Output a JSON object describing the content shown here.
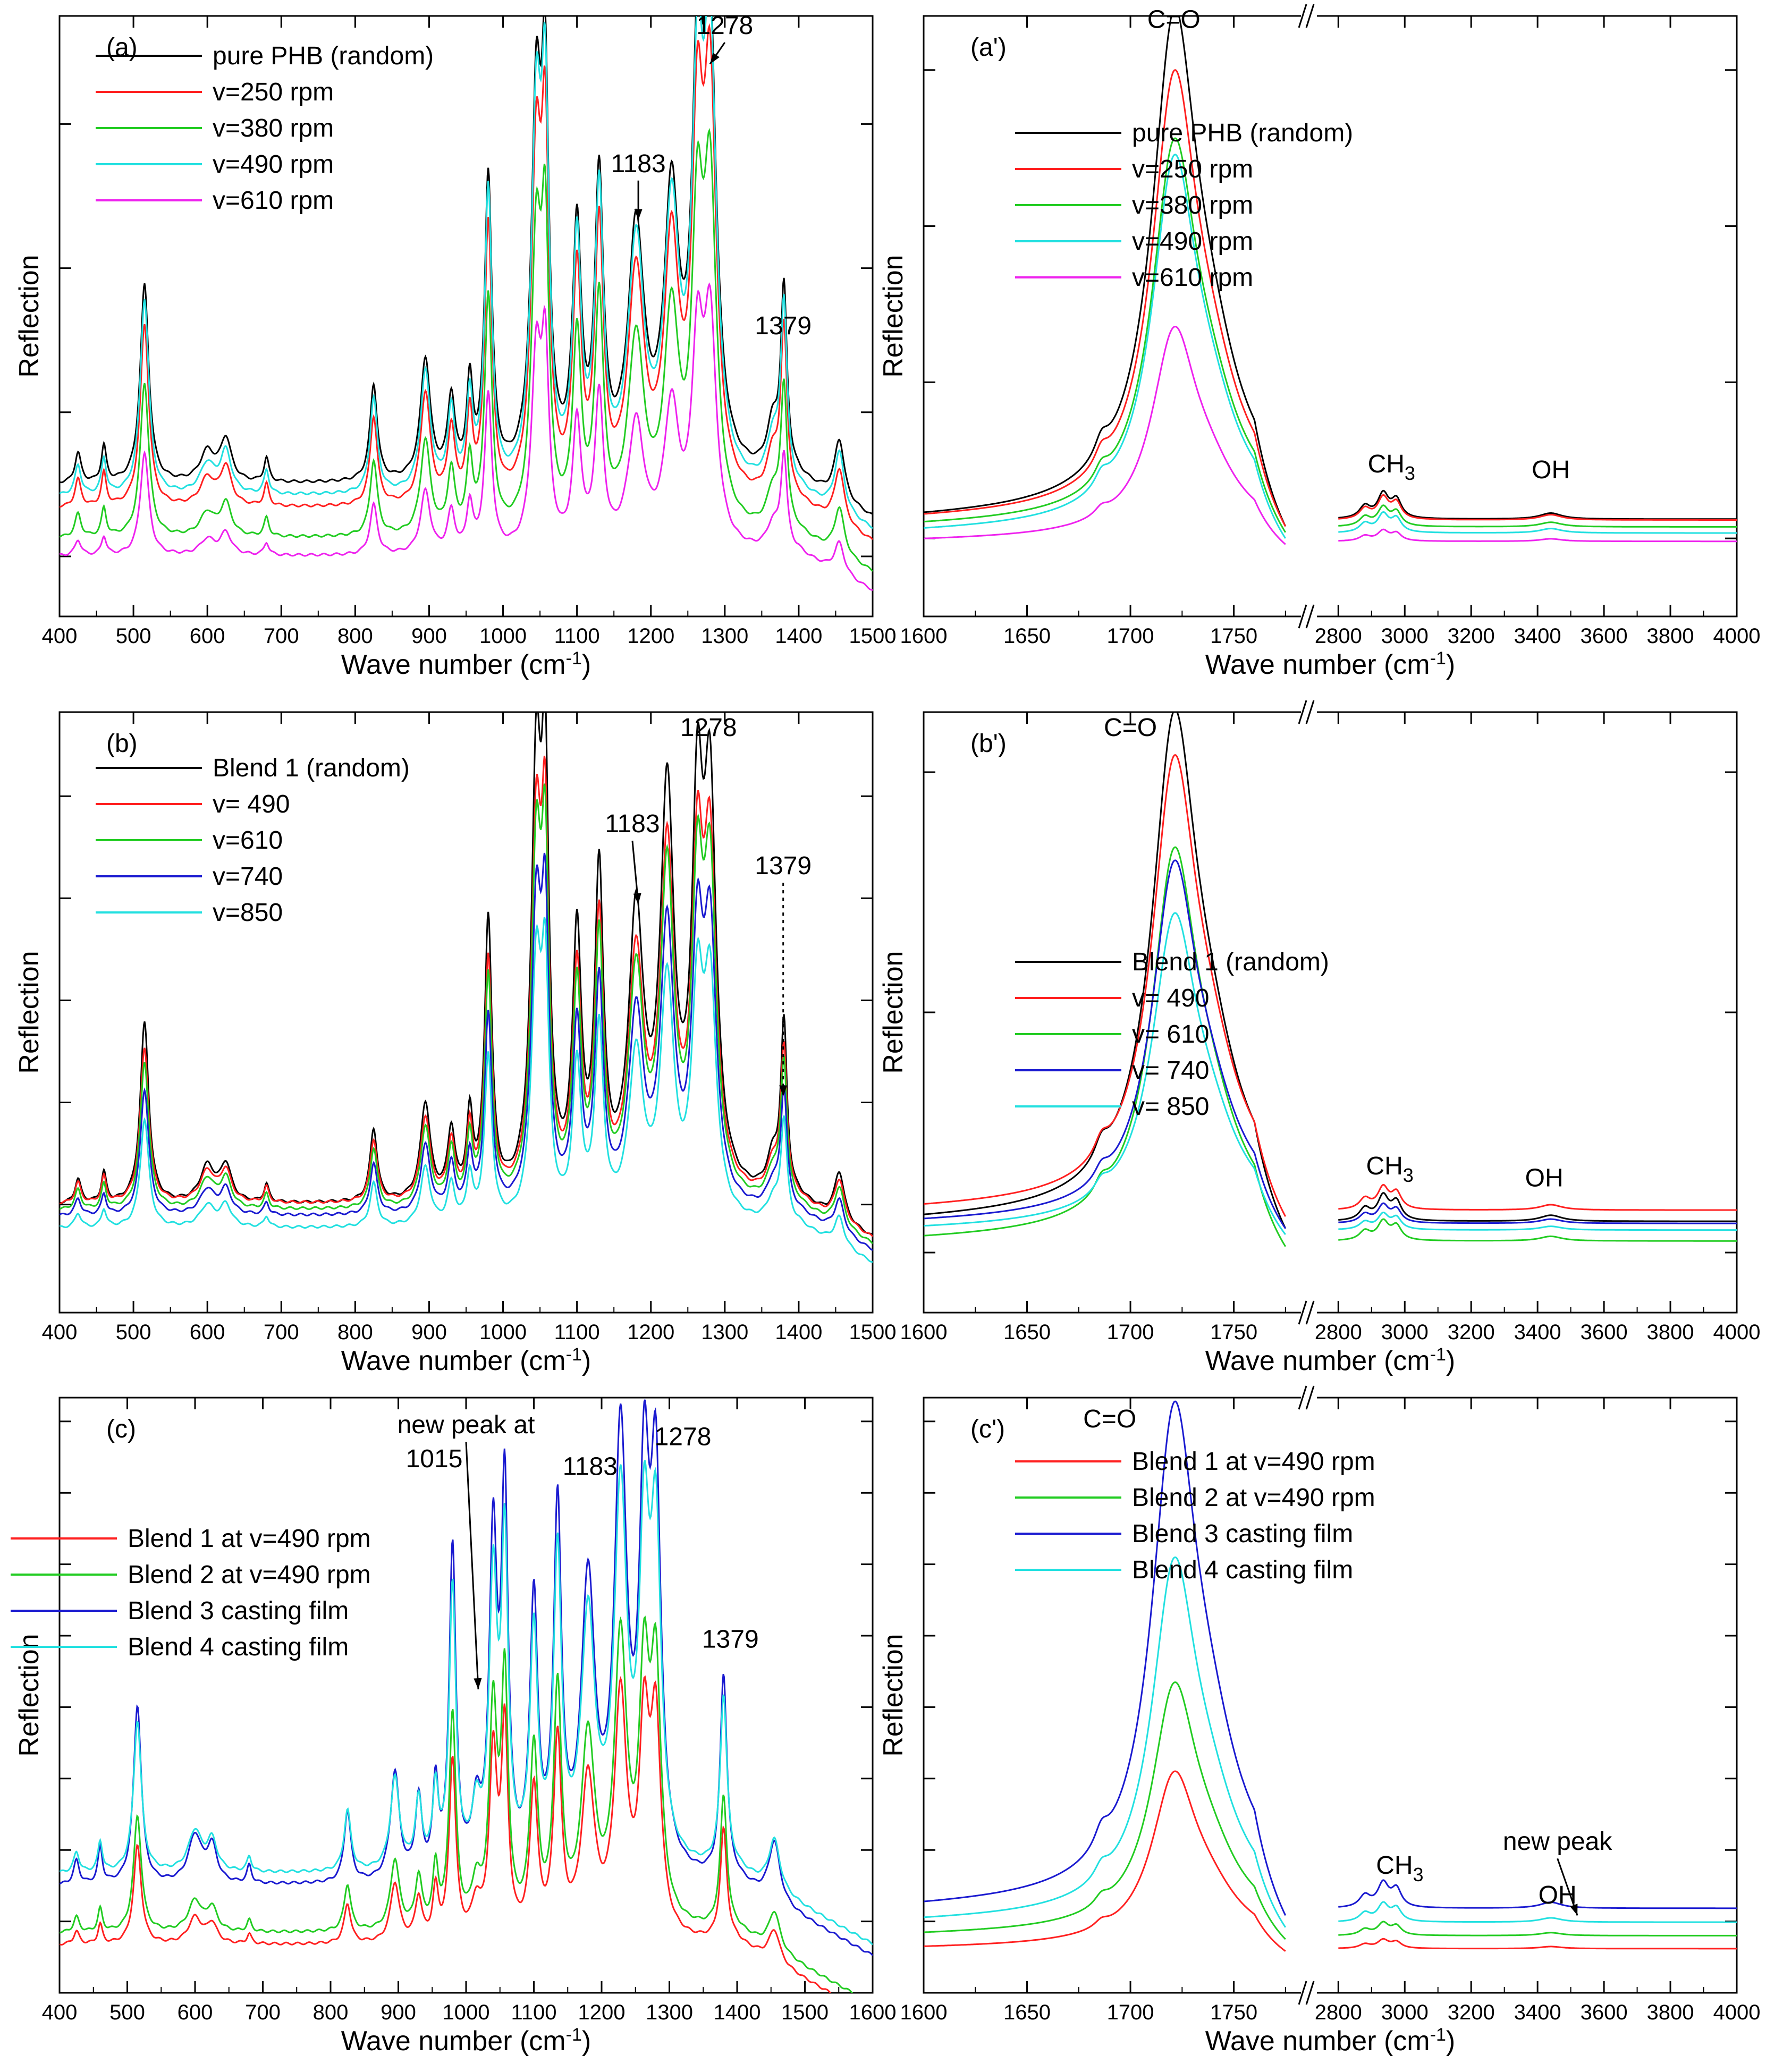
{
  "chart_data": [
    {
      "id": "a",
      "type": "line",
      "panel_label": "(a)",
      "xlabel": "Wave number (cm",
      "xlabel_sup": "-1",
      "xlabel_end": ")",
      "ylabel": "Reflection",
      "xlim": [
        400,
        1500
      ],
      "ylim": [
        0,
        100
      ],
      "xticks": [
        400,
        500,
        600,
        700,
        800,
        900,
        1000,
        1100,
        1200,
        1300,
        1400,
        1500
      ],
      "yticks": [
        10,
        34,
        58,
        82
      ],
      "legend": [
        "pure PHB (random)",
        "v=250 rpm",
        "v=380 rpm",
        "v=490 rpm",
        "v=610 rpm"
      ],
      "series": [
        {
          "name": "pure PHB (random)",
          "color": "#000000",
          "base": 22,
          "scale": 1.0
        },
        {
          "name": "v=250 rpm",
          "color": "#ff2020",
          "base": 18,
          "scale": 0.92
        },
        {
          "name": "v=380 rpm",
          "color": "#22cc22",
          "base": 13,
          "scale": 0.78
        },
        {
          "name": "v=490 rpm",
          "color": "#22e0e0",
          "base": 20,
          "scale": 0.99
        },
        {
          "name": "v=610 rpm",
          "color": "#ee22ee",
          "base": 10,
          "scale": 0.52
        }
      ],
      "peaks": [
        [
          425,
          5,
          5
        ],
        [
          460,
          6,
          4
        ],
        [
          515,
          33,
          7
        ],
        [
          600,
          5,
          12
        ],
        [
          625,
          7,
          9
        ],
        [
          680,
          4,
          4
        ],
        [
          825,
          16,
          6
        ],
        [
          895,
          20,
          8
        ],
        [
          930,
          13,
          6
        ],
        [
          955,
          15,
          5
        ],
        [
          980,
          50,
          6
        ],
        [
          1045,
          60,
          8
        ],
        [
          1057,
          58,
          6
        ],
        [
          1100,
          40,
          7
        ],
        [
          1130,
          48,
          7
        ],
        [
          1180,
          40,
          13
        ],
        [
          1228,
          44,
          12
        ],
        [
          1263,
          60,
          9
        ],
        [
          1280,
          70,
          10
        ],
        [
          1365,
          8,
          10
        ],
        [
          1380,
          30,
          5
        ],
        [
          1455,
          10,
          8
        ]
      ],
      "annotations": [
        {
          "text": "1278",
          "x": 1300,
          "y": 97,
          "arrow_to": [
            1280,
            92
          ]
        },
        {
          "text": "1183",
          "x": 1183,
          "y": 74,
          "arrow_to": [
            1183,
            66
          ]
        },
        {
          "text": "1379",
          "x": 1379,
          "y": 47
        }
      ]
    },
    {
      "id": "a2",
      "type": "line",
      "panel_label": "(a')",
      "xlabel": "Wave number (cm",
      "xlabel_sup": "-1",
      "xlabel_end": ")",
      "ylabel": "Reflection",
      "segments": [
        {
          "xlim": [
            1600,
            1775
          ],
          "ticks": [
            1600,
            1650,
            1700,
            1750
          ]
        },
        {
          "xlim": [
            2800,
            4000
          ],
          "ticks": [
            2800,
            3000,
            3200,
            3400,
            3600,
            3800,
            4000
          ]
        }
      ],
      "ylim": [
        0,
        100
      ],
      "yticks": [
        13,
        39,
        65,
        91
      ],
      "legend": [
        "pure PHB (random)",
        "v=250 rpm",
        "v=380 rpm",
        "v=490 rpm",
        "v=610 rpm"
      ],
      "series": [
        {
          "name": "pure PHB (random)",
          "color": "#000000",
          "base": 15,
          "scale": 1.0
        },
        {
          "name": "v=250 rpm",
          "color": "#ff2020",
          "base": 15,
          "scale": 0.88
        },
        {
          "name": "v=380 rpm",
          "color": "#22cc22",
          "base": 14,
          "scale": 0.76
        },
        {
          "name": "v=490 rpm",
          "color": "#22e0e0",
          "base": 13,
          "scale": 0.74
        },
        {
          "name": "v=610 rpm",
          "color": "#ee22ee",
          "base": 12,
          "scale": 0.42
        }
      ],
      "annotations": [
        {
          "text": "C=O",
          "x": 1721,
          "y": 98
        },
        {
          "text": "CH",
          "sub": "3",
          "x": 2960,
          "y": 24
        },
        {
          "text": "OH",
          "x": 3440,
          "y": 23
        }
      ]
    },
    {
      "id": "b",
      "type": "line",
      "panel_label": "(b)",
      "xlabel": "Wave number (cm",
      "xlabel_sup": "-1",
      "xlabel_end": ")",
      "ylabel": "Reflection",
      "xlim": [
        400,
        1500
      ],
      "ylim": [
        0,
        100
      ],
      "xticks": [
        400,
        500,
        600,
        700,
        800,
        900,
        1000,
        1100,
        1200,
        1300,
        1400,
        1500
      ],
      "yticks": [
        18,
        35,
        52,
        69,
        86
      ],
      "legend": [
        "Blend 1 (random)",
        "v= 490",
        "v=610",
        "v=740",
        "v=850"
      ],
      "series": [
        {
          "name": "Blend 1 (random)",
          "color": "#000000",
          "base": 18,
          "scale": 1.0
        },
        {
          "name": "v= 490",
          "color": "#ff2020",
          "base": 18,
          "scale": 0.86
        },
        {
          "name": "v=610",
          "color": "#22cc22",
          "base": 17,
          "scale": 0.82
        },
        {
          "name": "v=740",
          "color": "#1a1ad0",
          "base": 16,
          "scale": 0.7
        },
        {
          "name": "v=850",
          "color": "#22e0e0",
          "base": 14,
          "scale": 0.6
        }
      ],
      "peaks": [
        [
          425,
          4,
          5
        ],
        [
          460,
          5,
          4
        ],
        [
          515,
          30,
          7
        ],
        [
          600,
          6,
          12
        ],
        [
          625,
          6,
          9
        ],
        [
          680,
          3,
          4
        ],
        [
          825,
          12,
          6
        ],
        [
          895,
          16,
          8
        ],
        [
          930,
          11,
          6
        ],
        [
          955,
          13,
          5
        ],
        [
          980,
          46,
          6
        ],
        [
          1045,
          68,
          8
        ],
        [
          1057,
          62,
          6
        ],
        [
          1100,
          42,
          7
        ],
        [
          1130,
          52,
          7
        ],
        [
          1180,
          45,
          12
        ],
        [
          1222,
          65,
          11
        ],
        [
          1263,
          58,
          9
        ],
        [
          1280,
          62,
          10
        ],
        [
          1365,
          6,
          10
        ],
        [
          1380,
          28,
          5
        ],
        [
          1455,
          8,
          8
        ]
      ],
      "annotations": [
        {
          "text": "1278",
          "x": 1278,
          "y": 96
        },
        {
          "text": "1183",
          "x": 1175,
          "y": 80,
          "arrow_to": [
            1183,
            68
          ]
        },
        {
          "text": "1379",
          "x": 1379,
          "y": 73,
          "arrow_to": [
            1379,
            36
          ],
          "dotted": true
        }
      ]
    },
    {
      "id": "b2",
      "type": "line",
      "panel_label": "(b')",
      "xlabel": "Wave number (cm",
      "xlabel_sup": "-1",
      "xlabel_end": ")",
      "ylabel": "Reflection",
      "segments": [
        {
          "xlim": [
            1600,
            1775
          ],
          "ticks": [
            1600,
            1650,
            1700,
            1750
          ]
        },
        {
          "xlim": [
            2800,
            4000
          ],
          "ticks": [
            2800,
            3000,
            3200,
            3400,
            3600,
            3800,
            4000
          ]
        }
      ],
      "ylim": [
        0,
        100
      ],
      "yticks": [
        10,
        50,
        90
      ],
      "legend": [
        "Blend 1 (random)",
        "v= 490",
        "v= 610",
        "v= 740",
        "v= 850"
      ],
      "series": [
        {
          "name": "Blend 1 (random)",
          "color": "#000000",
          "base": 14,
          "scale": 1.0
        },
        {
          "name": "v= 490",
          "color": "#ff2020",
          "base": 16,
          "scale": 0.89
        },
        {
          "name": "v= 610",
          "color": "#22cc22",
          "base": 11,
          "scale": 0.77
        },
        {
          "name": "v= 740",
          "color": "#1a1ad0",
          "base": 14,
          "scale": 0.71
        },
        {
          "name": "v= 850",
          "color": "#22e0e0",
          "base": 13,
          "scale": 0.62
        }
      ],
      "annotations": [
        {
          "text": "C=O",
          "x": 1700,
          "y": 96
        },
        {
          "text": "CH",
          "sub": "3",
          "x": 2955,
          "y": 23
        },
        {
          "text": "OH",
          "x": 3420,
          "y": 21
        }
      ]
    },
    {
      "id": "c",
      "type": "line",
      "panel_label": "(c)",
      "xlabel": "Wave number (cm",
      "xlabel_sup": "-1",
      "xlabel_end": ")",
      "ylabel": "Reflection",
      "xlim": [
        400,
        1600
      ],
      "ylim": [
        0,
        100
      ],
      "xticks": [
        400,
        500,
        600,
        700,
        800,
        900,
        1000,
        1100,
        1200,
        1300,
        1400,
        1500,
        1600
      ],
      "yticks": [
        12,
        24,
        36,
        48,
        60,
        72,
        84,
        96
      ],
      "legend": [
        "Blend 1 at v=490 rpm",
        "Blend 2 at v=490 rpm",
        "Blend 3 casting film",
        "Blend 4 casting film"
      ],
      "series": [
        {
          "name": "Blend 1 at v=490 rpm",
          "color": "#ff2020",
          "base": 8,
          "scale": 0.55
        },
        {
          "name": "Blend 2 at v=490 rpm",
          "color": "#22cc22",
          "base": 10,
          "scale": 0.65
        },
        {
          "name": "Blend 3 casting film",
          "color": "#1a1ad0",
          "base": 18,
          "scale": 1.0
        },
        {
          "name": "Blend 4 casting film",
          "color": "#22e0e0",
          "base": 20,
          "scale": 0.85
        }
      ],
      "peaks": [
        [
          425,
          4,
          5
        ],
        [
          460,
          6,
          4
        ],
        [
          515,
          30,
          7
        ],
        [
          600,
          8,
          12
        ],
        [
          625,
          6,
          9
        ],
        [
          680,
          3,
          4
        ],
        [
          825,
          12,
          6
        ],
        [
          895,
          18,
          8
        ],
        [
          930,
          13,
          6
        ],
        [
          955,
          15,
          5
        ],
        [
          980,
          55,
          6
        ],
        [
          1015,
          10,
          8
        ],
        [
          1040,
          55,
          7
        ],
        [
          1057,
          62,
          6
        ],
        [
          1100,
          45,
          7
        ],
        [
          1135,
          60,
          7
        ],
        [
          1180,
          48,
          12
        ],
        [
          1228,
          72,
          11
        ],
        [
          1263,
          60,
          9
        ],
        [
          1280,
          62,
          9
        ],
        [
          1380,
          34,
          6
        ],
        [
          1455,
          10,
          10
        ]
      ],
      "annotations": [
        {
          "text": "new peak at",
          "text2": "1015",
          "x": 1000,
          "y": 94,
          "arrow_to": [
            1018,
            51
          ]
        },
        {
          "text": "1183",
          "x": 1183,
          "y": 87
        },
        {
          "text": "1278",
          "x": 1320,
          "y": 92
        },
        {
          "text": "1379",
          "x": 1390,
          "y": 58
        }
      ]
    },
    {
      "id": "c2",
      "type": "line",
      "panel_label": "(c')",
      "xlabel": "Wave number (cm",
      "xlabel_sup": "-1",
      "xlabel_end": ")",
      "ylabel": "Reflection",
      "segments": [
        {
          "xlim": [
            1600,
            1775
          ],
          "ticks": [
            1600,
            1650,
            1700,
            1750
          ]
        },
        {
          "xlim": [
            2800,
            4000
          ],
          "ticks": [
            2800,
            3000,
            3200,
            3400,
            3600,
            3800,
            4000
          ]
        }
      ],
      "ylim": [
        0,
        100
      ],
      "yticks": [
        12,
        24,
        36,
        48,
        60,
        72,
        84,
        96
      ],
      "legend": [
        "Blend 1 at v=490 rpm",
        "Blend 2 at v=490 rpm",
        "Blend 3 casting film",
        "Blend 4 casting film"
      ],
      "series": [
        {
          "name": "Blend 1 at v=490 rpm",
          "color": "#ff2020",
          "base": 7,
          "scale": 0.35
        },
        {
          "name": "Blend 2 at v=490 rpm",
          "color": "#22cc22",
          "base": 9,
          "scale": 0.5
        },
        {
          "name": "Blend 3 casting film",
          "color": "#1a1ad0",
          "base": 13,
          "scale": 1.0
        },
        {
          "name": "Blend 4 casting film",
          "color": "#22e0e0",
          "base": 11,
          "scale": 0.72
        }
      ],
      "annotations": [
        {
          "text": "C=O",
          "x": 1690,
          "y": 95
        },
        {
          "text": "CH",
          "sub": "3",
          "x": 2985,
          "y": 20
        },
        {
          "text": "new peak",
          "x": 3460,
          "y": 24,
          "arrow_to": [
            3520,
            13
          ]
        },
        {
          "text": "OH",
          "x": 3460,
          "y": 15
        }
      ]
    }
  ]
}
